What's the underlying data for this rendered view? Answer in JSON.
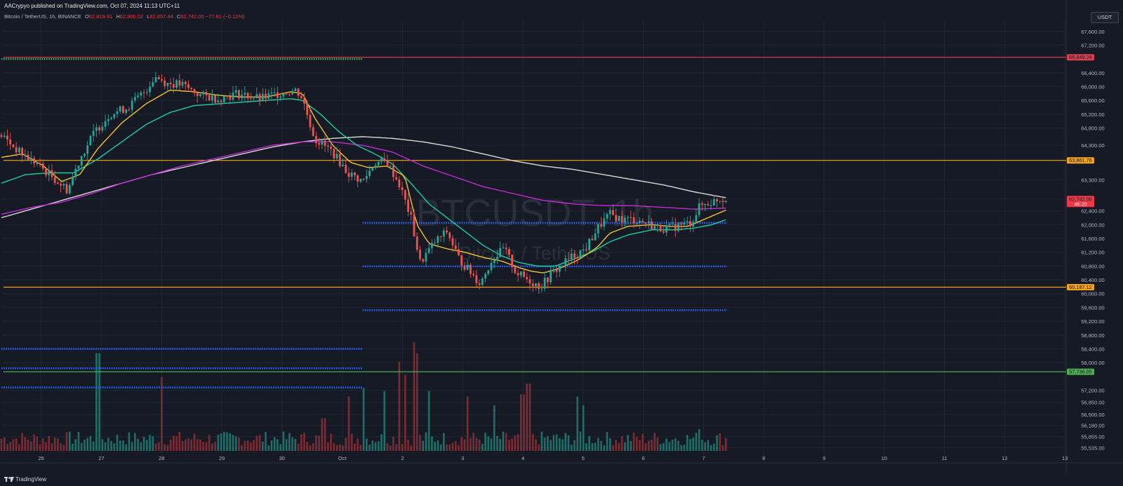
{
  "header": {
    "published": "AACrypyo published on TradingView.com, Oct 07, 2024 11:13 UTC+11"
  },
  "symbol": {
    "title": "Bitcoin / TetherUS, 1h, BINANCE",
    "o_label": "O",
    "o_value": "62,819.91",
    "h_label": "H",
    "h_value": "62,900.02",
    "l_label": "L",
    "l_value": "62,657.44",
    "c_label": "C",
    "c_value": "62,742.00",
    "change": "−77.91 (−0.12%)"
  },
  "currency": "USDT",
  "watermark": {
    "ticker": "BTCUSDT, 1h",
    "name": "Bitcoin / TetherUS"
  },
  "footer": {
    "logo_text": "TradingView"
  },
  "colors": {
    "background": "#161a25",
    "grid": "#222631",
    "up": "#26a69a",
    "down": "#ef5350",
    "ema_fast": "#f2c230",
    "ema_mid": "#1fcf9a",
    "ma_purple": "#c02cd6",
    "ma_white": "#d8d8d8",
    "level_red": "#e23c4e",
    "level_orange": "#f7a21b",
    "level_green": "#4caf50",
    "dots_blue": "#2962ff",
    "dots_green": "#4caf50"
  },
  "chart_data": {
    "type": "candlestick",
    "ylim": [
      55300,
      67900
    ],
    "y_ticks": [
      "67,600.00",
      "67,200.00",
      "66,849.24",
      "66,400.00",
      "66,000.00",
      "65,600.00",
      "65,200.00",
      "64,800.00",
      "64,300.00",
      "63,861.76",
      "63,300.00",
      "62,742.00",
      "62,400.00",
      "62,000.00",
      "61,600.00",
      "61,200.00",
      "60,800.00",
      "60,400.00",
      "60,187.12",
      "60,000.00",
      "59,600.00",
      "59,200.00",
      "58,800.00",
      "58,400.00",
      "58,000.00",
      "57,736.05",
      "57,200.00",
      "56,850.00",
      "56,500.00",
      "56,180.00",
      "55,855.00",
      "55,535.00"
    ],
    "x_ticks": [
      "26",
      "27",
      "28",
      "29",
      "30",
      "Oct",
      "2",
      "3",
      "4",
      "5",
      "6",
      "7",
      "8",
      "9",
      "10",
      "11",
      "12",
      "13"
    ],
    "price_labels": [
      {
        "text": "66,849.24",
        "value": 66849.24,
        "color": "#e23c4e"
      },
      {
        "text": "63,861.76",
        "value": 63861.76,
        "color": "#f7a21b"
      },
      {
        "text": "62,742.00",
        "value": 62742,
        "color": "#f23645",
        "sub": "46:20"
      },
      {
        "text": "60,187.12",
        "value": 60187.12,
        "color": "#f7a21b"
      },
      {
        "text": "57,736.05",
        "value": 57736.05,
        "color": "#4caf50"
      }
    ],
    "horizontal_levels": [
      {
        "value": 66849.24,
        "color": "#e23c4e",
        "style": "solid"
      },
      {
        "value": 63861.76,
        "color": "#f7a21b",
        "style": "solid"
      },
      {
        "value": 60187.12,
        "color": "#f7a21b",
        "style": "solid"
      },
      {
        "value": 57736.05,
        "color": "#4caf50",
        "style": "solid"
      }
    ],
    "dotted_levels": [
      {
        "value": 66800,
        "color": "#4caf50",
        "from_day": 0,
        "to_day": 6.0
      },
      {
        "value": 62050,
        "color": "#2962ff",
        "from_day": 6.0,
        "to_day": 12.05
      },
      {
        "value": 60790,
        "color": "#2962ff",
        "from_day": 6.0,
        "to_day": 12.05
      },
      {
        "value": 59520,
        "color": "#2962ff",
        "from_day": 6.0,
        "to_day": 12.05
      },
      {
        "value": 58400,
        "color": "#2962ff",
        "from_day": 0,
        "to_day": 6.0
      },
      {
        "value": 57840,
        "color": "#2962ff",
        "from_day": 0,
        "to_day": 6.0
      },
      {
        "value": 57280,
        "color": "#2962ff",
        "from_day": 0,
        "to_day": 6.0
      }
    ],
    "price_path": [
      [
        0,
        64600
      ],
      [
        0.3,
        64100
      ],
      [
        0.6,
        63750
      ],
      [
        0.9,
        63300
      ],
      [
        1.1,
        63000
      ],
      [
        1.3,
        63900
      ],
      [
        1.55,
        64700
      ],
      [
        1.8,
        65200
      ],
      [
        2.1,
        65400
      ],
      [
        2.4,
        65900
      ],
      [
        2.55,
        66300
      ],
      [
        2.75,
        66100
      ],
      [
        3.0,
        66050
      ],
      [
        3.3,
        65750
      ],
      [
        3.6,
        65650
      ],
      [
        3.9,
        65800
      ],
      [
        4.3,
        65650
      ],
      [
        4.6,
        65800
      ],
      [
        4.9,
        65900
      ],
      [
        5.0,
        65650
      ],
      [
        5.2,
        64500
      ],
      [
        5.5,
        64100
      ],
      [
        5.75,
        63500
      ],
      [
        6.0,
        63250
      ],
      [
        6.2,
        63800
      ],
      [
        6.4,
        63800
      ],
      [
        6.6,
        63200
      ],
      [
        6.8,
        62200
      ],
      [
        6.95,
        60900
      ],
      [
        7.2,
        61500
      ],
      [
        7.4,
        61800
      ],
      [
        7.6,
        61000
      ],
      [
        7.8,
        60600
      ],
      [
        7.95,
        60300
      ],
      [
        8.15,
        61000
      ],
      [
        8.35,
        61300
      ],
      [
        8.55,
        60600
      ],
      [
        8.75,
        60400
      ],
      [
        8.95,
        60200
      ],
      [
        9.15,
        60600
      ],
      [
        9.35,
        60900
      ],
      [
        9.5,
        61100
      ],
      [
        9.7,
        61300
      ],
      [
        9.9,
        61900
      ],
      [
        10.1,
        62300
      ],
      [
        10.3,
        62150
      ],
      [
        10.5,
        62150
      ],
      [
        10.7,
        62050
      ],
      [
        10.9,
        61900
      ],
      [
        11.1,
        61900
      ],
      [
        11.3,
        62000
      ],
      [
        11.45,
        62050
      ],
      [
        11.6,
        62550
      ],
      [
        11.8,
        62650
      ],
      [
        11.9,
        62750
      ],
      [
        12.03,
        62742
      ]
    ],
    "ema_fast": [
      [
        0,
        63950
      ],
      [
        0.35,
        64050
      ],
      [
        0.7,
        63700
      ],
      [
        1.0,
        63250
      ],
      [
        1.3,
        63450
      ],
      [
        1.6,
        64200
      ],
      [
        2.0,
        64950
      ],
      [
        2.4,
        65500
      ],
      [
        2.8,
        65900
      ],
      [
        3.2,
        65850
      ],
      [
        3.6,
        65750
      ],
      [
        4.0,
        65700
      ],
      [
        4.4,
        65700
      ],
      [
        4.8,
        65850
      ],
      [
        5.0,
        65800
      ],
      [
        5.2,
        65100
      ],
      [
        5.5,
        64300
      ],
      [
        5.8,
        63800
      ],
      [
        6.1,
        63650
      ],
      [
        6.4,
        63700
      ],
      [
        6.7,
        63400
      ],
      [
        6.9,
        62000
      ],
      [
        7.1,
        61450
      ],
      [
        7.4,
        61300
      ],
      [
        7.7,
        61200
      ],
      [
        8.0,
        61050
      ],
      [
        8.3,
        60950
      ],
      [
        8.6,
        60750
      ],
      [
        8.8,
        60650
      ],
      [
        9.0,
        60600
      ],
      [
        9.3,
        60750
      ],
      [
        9.6,
        61000
      ],
      [
        9.9,
        61350
      ],
      [
        10.1,
        61750
      ],
      [
        10.4,
        61950
      ],
      [
        10.8,
        62000
      ],
      [
        11.1,
        61950
      ],
      [
        11.4,
        61950
      ],
      [
        11.6,
        62100
      ],
      [
        11.8,
        62250
      ],
      [
        12.03,
        62420
      ]
    ],
    "ema_mid": [
      [
        0,
        63200
      ],
      [
        0.4,
        63450
      ],
      [
        0.8,
        63500
      ],
      [
        1.2,
        63500
      ],
      [
        1.6,
        63900
      ],
      [
        2.0,
        64400
      ],
      [
        2.4,
        64900
      ],
      [
        2.8,
        65250
      ],
      [
        3.2,
        65450
      ],
      [
        3.6,
        65500
      ],
      [
        4.0,
        65550
      ],
      [
        4.4,
        65600
      ],
      [
        4.8,
        65650
      ],
      [
        5.0,
        65600
      ],
      [
        5.3,
        65200
      ],
      [
        5.6,
        64700
      ],
      [
        5.9,
        64300
      ],
      [
        6.2,
        64050
      ],
      [
        6.5,
        63750
      ],
      [
        6.8,
        63200
      ],
      [
        7.1,
        62600
      ],
      [
        7.4,
        62200
      ],
      [
        7.7,
        61800
      ],
      [
        8.0,
        61400
      ],
      [
        8.3,
        61100
      ],
      [
        8.6,
        60900
      ],
      [
        8.9,
        60800
      ],
      [
        9.2,
        60800
      ],
      [
        9.5,
        61000
      ],
      [
        9.8,
        61200
      ],
      [
        10.1,
        61500
      ],
      [
        10.4,
        61700
      ],
      [
        10.8,
        61850
      ],
      [
        11.2,
        61850
      ],
      [
        11.5,
        61900
      ],
      [
        11.8,
        62000
      ],
      [
        12.03,
        62140
      ]
    ],
    "ma_purple": [
      [
        0,
        62300
      ],
      [
        0.5,
        62500
      ],
      [
        1.0,
        62650
      ],
      [
        1.5,
        62900
      ],
      [
        2.0,
        63200
      ],
      [
        2.5,
        63450
      ],
      [
        3.0,
        63700
      ],
      [
        3.5,
        63900
      ],
      [
        4.0,
        64100
      ],
      [
        4.5,
        64300
      ],
      [
        5.0,
        64400
      ],
      [
        5.5,
        64400
      ],
      [
        6.0,
        64300
      ],
      [
        6.5,
        64100
      ],
      [
        7.0,
        63700
      ],
      [
        7.5,
        63400
      ],
      [
        8.0,
        63100
      ],
      [
        8.5,
        62900
      ],
      [
        9.0,
        62700
      ],
      [
        9.5,
        62600
      ],
      [
        10.0,
        62550
      ],
      [
        10.5,
        62550
      ],
      [
        11.0,
        62500
      ],
      [
        11.5,
        62450
      ],
      [
        12.03,
        62480
      ]
    ],
    "ma_white": [
      [
        0,
        62200
      ],
      [
        0.5,
        62450
      ],
      [
        1.0,
        62700
      ],
      [
        1.5,
        62950
      ],
      [
        2.0,
        63200
      ],
      [
        2.5,
        63450
      ],
      [
        3.0,
        63650
      ],
      [
        3.5,
        63850
      ],
      [
        4.0,
        64050
      ],
      [
        4.5,
        64250
      ],
      [
        5.0,
        64400
      ],
      [
        5.5,
        64500
      ],
      [
        6.0,
        64550
      ],
      [
        6.5,
        64500
      ],
      [
        7.0,
        64400
      ],
      [
        7.5,
        64250
      ],
      [
        8.0,
        64050
      ],
      [
        8.5,
        63850
      ],
      [
        9.0,
        63700
      ],
      [
        9.5,
        63600
      ],
      [
        10.0,
        63450
      ],
      [
        10.5,
        63300
      ],
      [
        11.0,
        63150
      ],
      [
        11.5,
        62950
      ],
      [
        12.03,
        62780
      ]
    ],
    "volume_spikes": [
      [
        1.6,
        0.9
      ],
      [
        2.65,
        0.68
      ],
      [
        5.35,
        0.3
      ],
      [
        5.75,
        0.5
      ],
      [
        6.0,
        0.58
      ],
      [
        6.35,
        0.55
      ],
      [
        6.6,
        0.82
      ],
      [
        6.7,
        0.7
      ],
      [
        6.85,
        1.0
      ],
      [
        6.92,
        0.9
      ],
      [
        7.1,
        0.55
      ],
      [
        7.75,
        0.5
      ],
      [
        8.2,
        0.42
      ],
      [
        8.65,
        0.52
      ],
      [
        8.75,
        0.62
      ],
      [
        9.55,
        0.5
      ],
      [
        9.65,
        0.42
      ],
      [
        11.6,
        0.2
      ]
    ]
  }
}
